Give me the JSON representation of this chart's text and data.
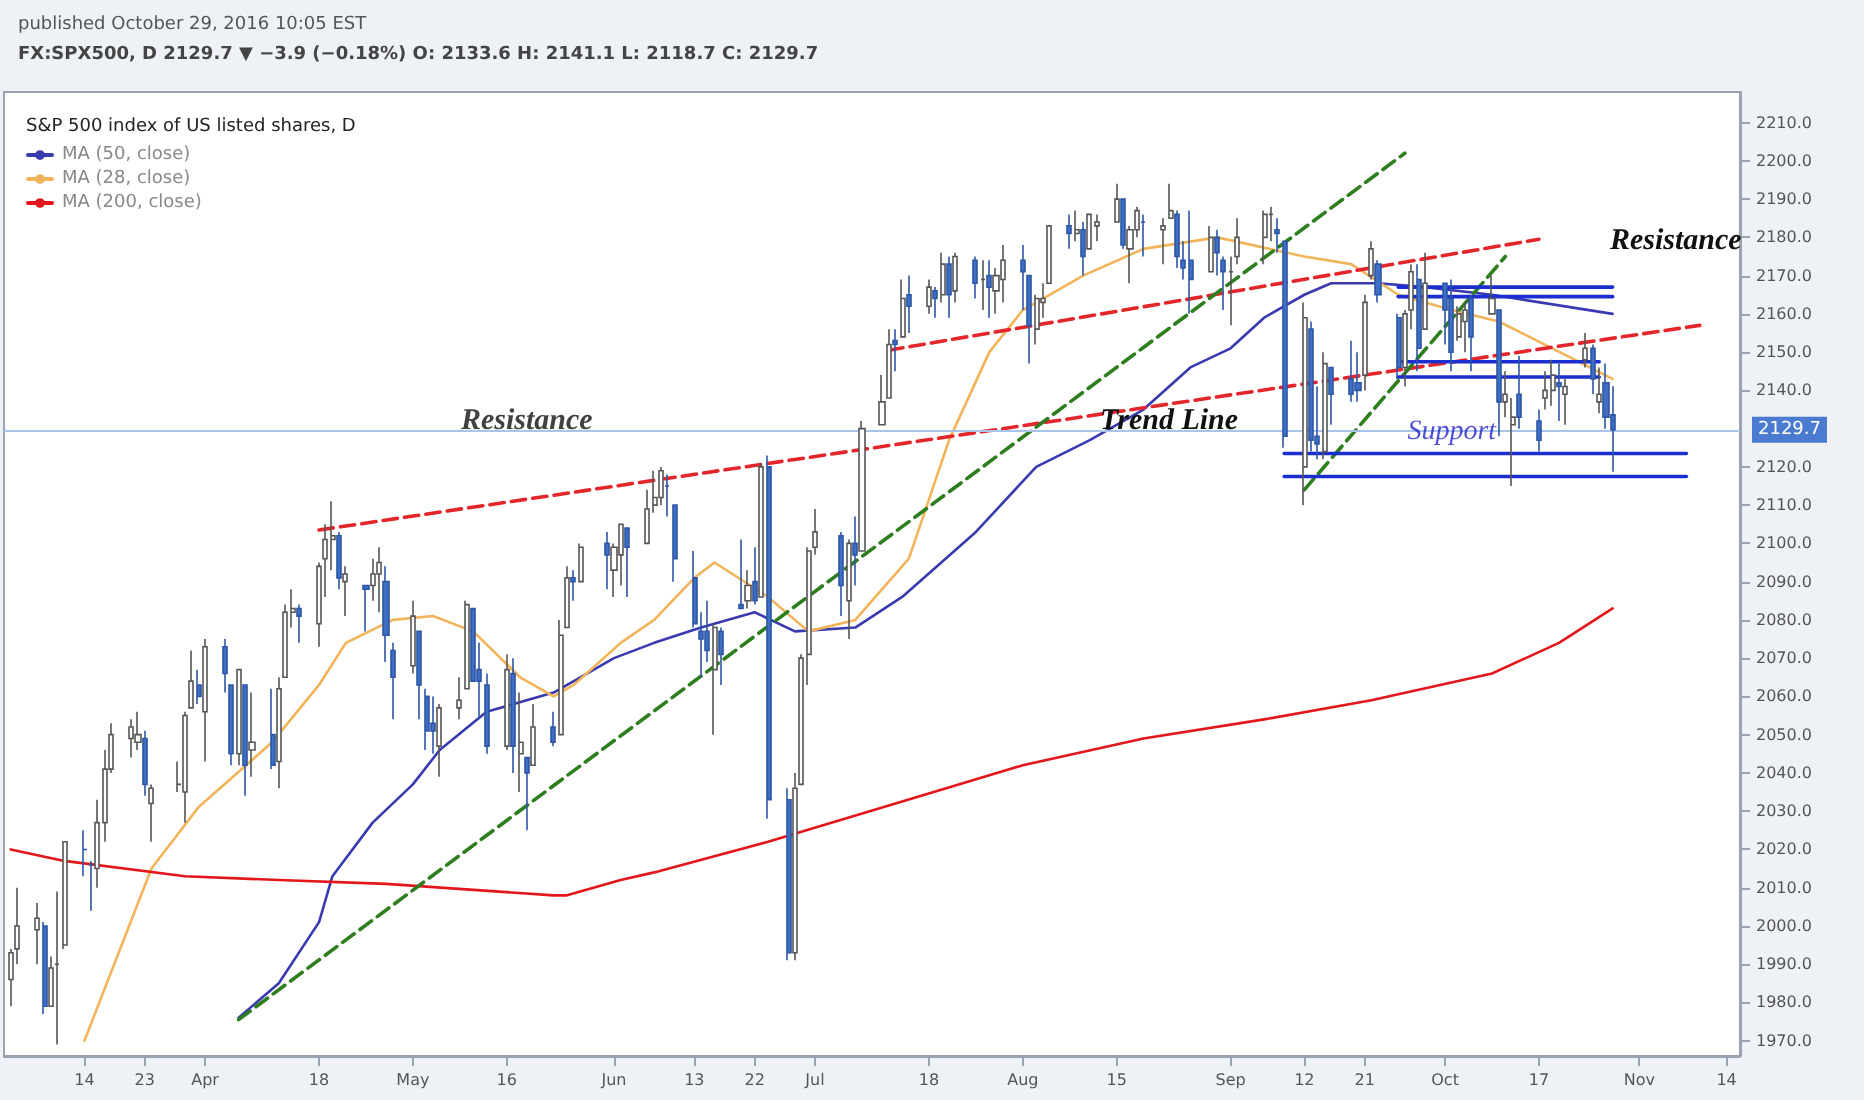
{
  "chart_data": {
    "type": "candlestick",
    "title": "S&P 500 index of US listed shares, D",
    "subtitle": "FX:SPX500, D 2129.7 ▼ −3.9 (−0.18%) O: 2133.6 H: 2141.1 L: 2118.7 C: 2129.7",
    "annotations": [
      "published October 29, 2016 10:05 EST",
      {
        "text": "Resistance",
        "x": "2016-05-19",
        "y": 2132
      },
      "Trend Line",
      {
        "text": "Support",
        "x": "2016-10-04",
        "y": 2129
      },
      "Resistance"
    ],
    "x": [
      "2016-03-03",
      "2016-03-04",
      "2016-03-07",
      "2016-03-08",
      "2016-03-09",
      "2016-03-10",
      "2016-03-11",
      "2016-03-14",
      "2016-03-15",
      "2016-03-16",
      "2016-03-17",
      "2016-03-18",
      "2016-03-21",
      "2016-03-22",
      "2016-03-23",
      "2016-03-24",
      "2016-03-28",
      "2016-03-29",
      "2016-03-30",
      "2016-03-31",
      "2016-04-01",
      "2016-04-04",
      "2016-04-05",
      "2016-04-06",
      "2016-04-07",
      "2016-04-08",
      "2016-04-11",
      "2016-04-12",
      "2016-04-13",
      "2016-04-14",
      "2016-04-15",
      "2016-04-18",
      "2016-04-19",
      "2016-04-20",
      "2016-04-21",
      "2016-04-22",
      "2016-04-25",
      "2016-04-26",
      "2016-04-27",
      "2016-04-28",
      "2016-04-29",
      "2016-05-02",
      "2016-05-03",
      "2016-05-04",
      "2016-05-05",
      "2016-05-06",
      "2016-05-09",
      "2016-05-10",
      "2016-05-11",
      "2016-05-12",
      "2016-05-13",
      "2016-05-16",
      "2016-05-17",
      "2016-05-18",
      "2016-05-19",
      "2016-05-20",
      "2016-05-23",
      "2016-05-24",
      "2016-05-25",
      "2016-05-26",
      "2016-05-27",
      "2016-05-31",
      "2016-06-01",
      "2016-06-02",
      "2016-06-03",
      "2016-06-06",
      "2016-06-07",
      "2016-06-08",
      "2016-06-09",
      "2016-06-10",
      "2016-06-13",
      "2016-06-14",
      "2016-06-15",
      "2016-06-16",
      "2016-06-17",
      "2016-06-20",
      "2016-06-21",
      "2016-06-22",
      "2016-06-23",
      "2016-06-24",
      "2016-06-27",
      "2016-06-28",
      "2016-06-29",
      "2016-06-30",
      "2016-07-01",
      "2016-07-05",
      "2016-07-06",
      "2016-07-07",
      "2016-07-08",
      "2016-07-11",
      "2016-07-12",
      "2016-07-13",
      "2016-07-14",
      "2016-07-15",
      "2016-07-18",
      "2016-07-19",
      "2016-07-20",
      "2016-07-21",
      "2016-07-22",
      "2016-07-25",
      "2016-07-26",
      "2016-07-27",
      "2016-07-28",
      "2016-07-29",
      "2016-08-01",
      "2016-08-02",
      "2016-08-03",
      "2016-08-04",
      "2016-08-05",
      "2016-08-08",
      "2016-08-09",
      "2016-08-10",
      "2016-08-11",
      "2016-08-12",
      "2016-08-15",
      "2016-08-16",
      "2016-08-17",
      "2016-08-18",
      "2016-08-19",
      "2016-08-22",
      "2016-08-23",
      "2016-08-24",
      "2016-08-25",
      "2016-08-26",
      "2016-08-29",
      "2016-08-30",
      "2016-08-31",
      "2016-09-01",
      "2016-09-02",
      "2016-09-06",
      "2016-09-07",
      "2016-09-08",
      "2016-09-09",
      "2016-09-12",
      "2016-09-13",
      "2016-09-14",
      "2016-09-15",
      "2016-09-16",
      "2016-09-19",
      "2016-09-20",
      "2016-09-21",
      "2016-09-22",
      "2016-09-23",
      "2016-09-26",
      "2016-09-27",
      "2016-09-28",
      "2016-09-29",
      "2016-09-30",
      "2016-10-03",
      "2016-10-04",
      "2016-10-05",
      "2016-10-06",
      "2016-10-07",
      "2016-10-10",
      "2016-10-11",
      "2016-10-12",
      "2016-10-13",
      "2016-10-14",
      "2016-10-17",
      "2016-10-18",
      "2016-10-19",
      "2016-10-20",
      "2016-10-21",
      "2016-10-24",
      "2016-10-25",
      "2016-10-26",
      "2016-10-27",
      "2016-10-28"
    ],
    "ohlc": [
      [
        1986,
        1994,
        1979,
        1993
      ],
      [
        1994,
        2010,
        1990,
        2000
      ],
      [
        1999,
        2006,
        1990,
        2002
      ],
      [
        2000,
        2001,
        1977,
        1979
      ],
      [
        1979,
        1992,
        1979,
        1989
      ],
      [
        1990,
        2009,
        1969,
        1990
      ],
      [
        1995,
        2022,
        1994,
        2022
      ],
      [
        2020,
        2025,
        2013,
        2020
      ],
      [
        2016,
        2017,
        2004,
        2016
      ],
      [
        2015,
        2033,
        2010,
        2027
      ],
      [
        2027,
        2046,
        2022,
        2041
      ],
      [
        2041,
        2053,
        2040,
        2050
      ],
      [
        2049,
        2054,
        2044,
        2052
      ],
      [
        2048,
        2056,
        2046,
        2050
      ],
      [
        2049,
        2051,
        2034,
        2037
      ],
      [
        2032,
        2037,
        2022,
        2036
      ],
      [
        2037,
        2043,
        2035,
        2037
      ],
      [
        2035,
        2056,
        2027,
        2055
      ],
      [
        2057,
        2072,
        2057,
        2064
      ],
      [
        2063,
        2067,
        2058,
        2060
      ],
      [
        2056,
        2075,
        2043,
        2073
      ],
      [
        2073,
        2075,
        2061,
        2066
      ],
      [
        2063,
        2063,
        2042,
        2045
      ],
      [
        2045,
        2067,
        2042,
        2067
      ],
      [
        2063,
        2063,
        2034,
        2042
      ],
      [
        2046,
        2061,
        2039,
        2048
      ],
      [
        2050,
        2062,
        2041,
        2042
      ],
      [
        2043,
        2065,
        2036,
        2062
      ],
      [
        2065,
        2084,
        2065,
        2082
      ],
      [
        2082,
        2088,
        2078,
        2083
      ],
      [
        2083,
        2084,
        2074,
        2081
      ],
      [
        2079,
        2095,
        2073,
        2094
      ],
      [
        2096,
        2105,
        2086,
        2101
      ],
      [
        2101,
        2111,
        2093,
        2102
      ],
      [
        2102,
        2103,
        2088,
        2091
      ],
      [
        2090,
        2094,
        2081,
        2092
      ],
      [
        2089,
        2089,
        2077,
        2088
      ],
      [
        2089,
        2096,
        2085,
        2092
      ],
      [
        2092,
        2099,
        2082,
        2095
      ],
      [
        2090,
        2094,
        2069,
        2076
      ],
      [
        2072,
        2074,
        2054,
        2065
      ],
      [
        2068,
        2085,
        2066,
        2081
      ],
      [
        2077,
        2077,
        2054,
        2063
      ],
      [
        2060,
        2062,
        2046,
        2051
      ],
      [
        2053,
        2060,
        2045,
        2051
      ],
      [
        2047,
        2058,
        2039,
        2057
      ],
      [
        2057,
        2065,
        2054,
        2059
      ],
      [
        2062,
        2085,
        2062,
        2084
      ],
      [
        2083,
        2083,
        2064,
        2064
      ],
      [
        2067,
        2074,
        2054,
        2064
      ],
      [
        2063,
        2066,
        2045,
        2047
      ],
      [
        2047,
        2071,
        2046,
        2067
      ],
      [
        2066,
        2070,
        2040,
        2047
      ],
      [
        2045,
        2061,
        2035,
        2048
      ],
      [
        2044,
        2044,
        2025,
        2040
      ],
      [
        2042,
        2058,
        2042,
        2052
      ],
      [
        2052,
        2056,
        2047,
        2048
      ],
      [
        2050,
        2080,
        2050,
        2076
      ],
      [
        2078,
        2094,
        2078,
        2091
      ],
      [
        2091,
        2093,
        2085,
        2090
      ],
      [
        2090,
        2100,
        2090,
        2099
      ],
      [
        2100,
        2103,
        2088,
        2097
      ],
      [
        2093,
        2100,
        2086,
        2099
      ],
      [
        2097,
        2105,
        2089,
        2105
      ],
      [
        2104,
        2104,
        2086,
        2099
      ],
      [
        2100,
        2114,
        2100,
        2109
      ],
      [
        2110,
        2119,
        2108,
        2112
      ],
      [
        2112,
        2120,
        2110,
        2119
      ],
      [
        2115,
        2118,
        2107,
        2115
      ],
      [
        2110,
        2110,
        2090,
        2096
      ],
      [
        2091,
        2098,
        2078,
        2079
      ],
      [
        2077,
        2082,
        2065,
        2075
      ],
      [
        2077,
        2085,
        2069,
        2072
      ],
      [
        2067,
        2079,
        2050,
        2078
      ],
      [
        2077,
        2078,
        2063,
        2071
      ],
      [
        2084,
        2101,
        2083,
        2083
      ],
      [
        2085,
        2093,
        2083,
        2089
      ],
      [
        2090,
        2099,
        2084,
        2085
      ],
      [
        2086,
        2121,
        2086,
        2120
      ],
      [
        2120,
        2123,
        2028,
        2033
      ],
      [
        2033,
        2036,
        1991,
        1993
      ],
      [
        1993,
        2040,
        1991,
        2036
      ],
      [
        2037,
        2071,
        2037,
        2070
      ],
      [
        2071,
        2099,
        2063,
        2098
      ],
      [
        2099,
        2109,
        2097,
        2103
      ],
      [
        2102,
        2103,
        2081,
        2089
      ],
      [
        2085,
        2101,
        2075,
        2100
      ],
      [
        2100,
        2107,
        2089,
        2097
      ],
      [
        2098,
        2132,
        2098,
        2130
      ],
      [
        2131,
        2144,
        2131,
        2137
      ],
      [
        2138,
        2156,
        2138,
        2152
      ],
      [
        2153,
        2156,
        2145,
        2152
      ],
      [
        2154,
        2169,
        2154,
        2164
      ],
      [
        2165,
        2170,
        2155,
        2162
      ],
      [
        2162,
        2169,
        2160,
        2167
      ],
      [
        2166,
        2167,
        2159,
        2164
      ],
      [
        2165,
        2176,
        2163,
        2173
      ],
      [
        2173,
        2175,
        2159,
        2165
      ],
      [
        2166,
        2176,
        2163,
        2175
      ],
      [
        2174,
        2175,
        2164,
        2168
      ],
      [
        2169,
        2174,
        2161,
        2169
      ],
      [
        2170,
        2174,
        2159,
        2167
      ],
      [
        2166,
        2172,
        2160,
        2170
      ],
      [
        2169,
        2178,
        2163,
        2174
      ],
      [
        2174,
        2178,
        2161,
        2171
      ],
      [
        2170,
        2170,
        2147,
        2157
      ],
      [
        2156,
        2165,
        2152,
        2164
      ],
      [
        2163,
        2168,
        2159,
        2164
      ],
      [
        2168,
        2183,
        2168,
        2183
      ],
      [
        2183,
        2186,
        2177,
        2181
      ],
      [
        2181,
        2187,
        2179,
        2182
      ],
      [
        2182,
        2184,
        2170,
        2175
      ],
      [
        2177,
        2186,
        2177,
        2186
      ],
      [
        2183,
        2186,
        2179,
        2184
      ],
      [
        2184,
        2194,
        2184,
        2190
      ],
      [
        2190,
        2190,
        2177,
        2178
      ],
      [
        2177,
        2183,
        2168,
        2182
      ],
      [
        2182,
        2188,
        2180,
        2187
      ],
      [
        2184,
        2186,
        2175,
        2184
      ],
      [
        2182,
        2185,
        2173,
        2183
      ],
      [
        2185,
        2194,
        2185,
        2187
      ],
      [
        2186,
        2187,
        2172,
        2175
      ],
      [
        2174,
        2179,
        2169,
        2172
      ],
      [
        2174,
        2187,
        2160,
        2169
      ],
      [
        2171,
        2183,
        2171,
        2180
      ],
      [
        2180,
        2182,
        2170,
        2176
      ],
      [
        2174,
        2175,
        2161,
        2171
      ],
      [
        2171,
        2175,
        2157,
        2171
      ],
      [
        2175,
        2185,
        2173,
        2180
      ],
      [
        2180,
        2187,
        2173,
        2186
      ],
      [
        2186,
        2188,
        2179,
        2186
      ],
      [
        2182,
        2185,
        2176,
        2181
      ],
      [
        2179,
        2179,
        2125,
        2128
      ],
      [
        2120,
        2163,
        2110,
        2159
      ],
      [
        2156,
        2158,
        2124,
        2127
      ],
      [
        2128,
        2141,
        2122,
        2126
      ],
      [
        2124,
        2150,
        2122,
        2147
      ],
      [
        2146,
        2146,
        2131,
        2139
      ],
      [
        2143,
        2153,
        2137,
        2139
      ],
      [
        2142,
        2150,
        2137,
        2140
      ],
      [
        2144,
        2165,
        2140,
        2163
      ],
      [
        2170,
        2179,
        2169,
        2177
      ],
      [
        2173,
        2174,
        2163,
        2165
      ],
      [
        2159,
        2160,
        2143,
        2146
      ],
      [
        2146,
        2161,
        2141,
        2160
      ],
      [
        2161,
        2173,
        2156,
        2171
      ],
      [
        2169,
        2173,
        2145,
        2151
      ],
      [
        2156,
        2176,
        2156,
        2168
      ],
      [
        2168,
        2168,
        2152,
        2161
      ],
      [
        2164,
        2169,
        2145,
        2150
      ],
      [
        2154,
        2162,
        2153,
        2160
      ],
      [
        2158,
        2163,
        2150,
        2161
      ],
      [
        2164,
        2165,
        2145,
        2154
      ],
      [
        2160,
        2170,
        2160,
        2164
      ],
      [
        2161,
        2161,
        2128,
        2137
      ],
      [
        2137,
        2145,
        2133,
        2139
      ],
      [
        2131,
        2138,
        2115,
        2133
      ],
      [
        2139,
        2149,
        2130,
        2133
      ],
      [
        2132,
        2135,
        2124,
        2127
      ],
      [
        2138,
        2145,
        2135,
        2140
      ],
      [
        2140,
        2148,
        2136,
        2144
      ],
      [
        2142,
        2147,
        2132,
        2141
      ],
      [
        2139,
        2143,
        2131,
        2141
      ],
      [
        2148,
        2155,
        2146,
        2151
      ],
      [
        2151,
        2152,
        2139,
        2143
      ],
      [
        2137,
        2146,
        2134,
        2139
      ],
      [
        2142,
        2147,
        2130,
        2133
      ],
      [
        2133.6,
        2141.1,
        2118.7,
        2129.7
      ]
    ],
    "series": [
      {
        "name": "MA (50, close)",
        "type": "line",
        "color": "#3a3ab0",
        "x": [
          "2016-04-06",
          "2016-04-12",
          "2016-04-18",
          "2016-04-20",
          "2016-04-26",
          "2016-05-02",
          "2016-05-06",
          "2016-05-13",
          "2016-05-23",
          "2016-06-01",
          "2016-06-07",
          "2016-06-14",
          "2016-06-22",
          "2016-06-28",
          "2016-07-07",
          "2016-07-14",
          "2016-07-25",
          "2016-08-03",
          "2016-08-11",
          "2016-08-19",
          "2016-08-26",
          "2016-09-01",
          "2016-09-06",
          "2016-09-12",
          "2016-09-16",
          "2016-09-23",
          "2016-09-30",
          "2016-10-10",
          "2016-10-28"
        ],
        "values": [
          1976,
          1985,
          2001,
          2013,
          2027,
          2037,
          2046,
          2056,
          2061,
          2070,
          2074,
          2078,
          2082,
          2077,
          2078,
          2086,
          2103,
          2120,
          2127,
          2135,
          2146,
          2151,
          2159,
          2165,
          2168,
          2168,
          2167,
          2165,
          2160
        ]
      },
      {
        "name": "MA (28, close)",
        "type": "line",
        "color": "#f2b45a",
        "x": [
          "2016-03-14",
          "2016-03-24",
          "2016-03-31",
          "2016-04-11",
          "2016-04-18",
          "2016-04-22",
          "2016-04-29",
          "2016-05-05",
          "2016-05-11",
          "2016-05-18",
          "2016-05-23",
          "2016-05-26",
          "2016-06-02",
          "2016-06-07",
          "2016-06-13",
          "2016-06-16",
          "2016-06-24",
          "2016-06-30",
          "2016-07-07",
          "2016-07-15",
          "2016-07-21",
          "2016-07-27",
          "2016-08-01",
          "2016-08-10",
          "2016-08-19",
          "2016-08-30",
          "2016-09-12",
          "2016-09-19",
          "2016-09-26",
          "2016-10-04",
          "2016-10-11",
          "2016-10-19",
          "2016-10-28"
        ],
        "values": [
          1970,
          2015,
          2031,
          2048,
          2063,
          2074,
          2080,
          2081,
          2077,
          2065,
          2060,
          2063,
          2074,
          2080,
          2091,
          2095,
          2086,
          2077,
          2080,
          2096,
          2127,
          2150,
          2161,
          2170,
          2177,
          2180,
          2175,
          2173,
          2165,
          2161,
          2158,
          2151,
          2143
        ]
      },
      {
        "name": "MA (200, close)",
        "type": "line",
        "color": "#e3161b",
        "x": [
          "2016-03-03",
          "2016-03-11",
          "2016-03-29",
          "2016-04-12",
          "2016-04-28",
          "2016-05-23",
          "2016-05-25",
          "2016-06-02",
          "2016-06-07",
          "2016-06-24",
          "2016-07-13",
          "2016-08-01",
          "2016-08-19",
          "2016-09-06",
          "2016-09-22",
          "2016-10-10",
          "2016-10-20",
          "2016-10-28"
        ],
        "values": [
          2020,
          2017,
          2013,
          2012,
          2011,
          2008,
          2008,
          2012,
          2014,
          2022,
          2032,
          2042,
          2049,
          2054,
          2059,
          2066,
          2074,
          2083
        ]
      },
      {
        "type": "line",
        "color": "#e3262b",
        "line_style": "dashed",
        "x": [
          "2016-04-18",
          "2016-11-10"
        ],
        "values": [
          2103.5,
          2157
        ]
      },
      {
        "type": "line",
        "color": "#e3262b",
        "line_style": "dashed",
        "x": [
          "2016-07-12",
          "2016-10-17"
        ],
        "values": [
          2150.5,
          2179.5
        ]
      },
      {
        "type": "line",
        "color": "#2e7d1e",
        "line_style": "dashed",
        "x": [
          "2016-04-06",
          "2016-09-27"
        ],
        "values": [
          1975.5,
          2202
        ]
      },
      {
        "type": "line",
        "color": "#2e7d1e",
        "line_style": "dashed",
        "x": [
          "2016-09-12",
          "2016-10-12"
        ],
        "values": [
          2114,
          2175
        ]
      },
      {
        "type": "line",
        "color": "#1b2fd1",
        "line_style": "solid",
        "x": [
          "2016-09-09",
          "2016-11-08"
        ],
        "values": [
          2123.5,
          2123.5
        ]
      },
      {
        "type": "line",
        "color": "#1b2fd1",
        "line_style": "solid",
        "x": [
          "2016-09-09",
          "2016-11-08"
        ],
        "values": [
          2117.5,
          2117.5
        ]
      },
      {
        "type": "line",
        "color": "#1b2fd1",
        "line_style": "solid",
        "x": [
          "2016-09-26",
          "2016-10-26"
        ],
        "values": [
          2147.5,
          2147.5
        ]
      },
      {
        "type": "line",
        "color": "#1b2fd1",
        "line_style": "solid",
        "x": [
          "2016-09-26",
          "2016-10-26"
        ],
        "values": [
          2143.5,
          2143.5
        ]
      },
      {
        "type": "line",
        "color": "#1b2fd1",
        "line_style": "solid",
        "x": [
          "2016-09-26",
          "2016-10-28"
        ],
        "values": [
          2167,
          2167
        ]
      },
      {
        "type": "line",
        "color": "#1b2fd1",
        "line_style": "solid",
        "x": [
          "2016-09-26",
          "2016-10-28"
        ],
        "values": [
          2164.5,
          2164.5
        ]
      }
    ],
    "ref_lines": [
      {
        "axis": "y",
        "value": 2129.7,
        "label": "2129.7",
        "color": "#a9c3ea"
      }
    ],
    "xlim": [
      "2016-03-02",
      "2016-11-16"
    ],
    "xticks": [
      {
        "value": "2016-03-14",
        "label": "14"
      },
      {
        "value": "2016-03-23",
        "label": "23"
      },
      {
        "value": "2016-04-01",
        "label": "Apr"
      },
      {
        "value": "2016-04-18",
        "label": "18"
      },
      {
        "value": "2016-05-02",
        "label": "May"
      },
      {
        "value": "2016-05-16",
        "label": "16"
      },
      {
        "value": "2016-06-01",
        "label": "Jun"
      },
      {
        "value": "2016-06-13",
        "label": "13"
      },
      {
        "value": "2016-06-22",
        "label": "22"
      },
      {
        "value": "2016-07-01",
        "label": "Jul"
      },
      {
        "value": "2016-07-18",
        "label": "18"
      },
      {
        "value": "2016-08-01",
        "label": "Aug"
      },
      {
        "value": "2016-08-15",
        "label": "15"
      },
      {
        "value": "2016-09-01",
        "label": "Sep"
      },
      {
        "value": "2016-09-12",
        "label": "12"
      },
      {
        "value": "2016-09-21",
        "label": "21"
      },
      {
        "value": "2016-10-03",
        "label": "Oct"
      },
      {
        "value": "2016-10-17",
        "label": "17"
      },
      {
        "value": "2016-11-01",
        "label": "Nov"
      },
      {
        "value": "2016-11-14",
        "label": "14"
      }
    ],
    "ylim": [
      1966,
      2218
    ],
    "yticks": [
      {
        "value": 1970,
        "label": "1970.0"
      },
      {
        "value": 1980,
        "label": "1980.0"
      },
      {
        "value": 1990,
        "label": "1990.0"
      },
      {
        "value": 2000,
        "label": "2000.0"
      },
      {
        "value": 2010,
        "label": "2010.0"
      },
      {
        "value": 2020,
        "label": "2020.0"
      },
      {
        "value": 2030,
        "label": "2030.0"
      },
      {
        "value": 2040,
        "label": "2040.0"
      },
      {
        "value": 2050,
        "label": "2050.0"
      },
      {
        "value": 2060,
        "label": "2060.0"
      },
      {
        "value": 2070,
        "label": "2070.0"
      },
      {
        "value": 2080,
        "label": "2080.0"
      },
      {
        "value": 2090,
        "label": "2090.0"
      },
      {
        "value": 2100,
        "label": "2100.0"
      },
      {
        "value": 2110,
        "label": "2110.0"
      },
      {
        "value": 2120,
        "label": "2120.0"
      },
      {
        "value": 2140,
        "label": "2140.0"
      },
      {
        "value": 2150,
        "label": "2150.0"
      },
      {
        "value": 2160,
        "label": "2160.0"
      },
      {
        "value": 2170,
        "label": "2170.0"
      },
      {
        "value": 2180,
        "label": "2180.0"
      },
      {
        "value": 2190,
        "label": "2190.0"
      },
      {
        "value": 2200,
        "label": "2200.0"
      },
      {
        "value": 2210,
        "label": "2210.0"
      }
    ],
    "legend": "top left",
    "marker": "none",
    "grid": false
  }
}
